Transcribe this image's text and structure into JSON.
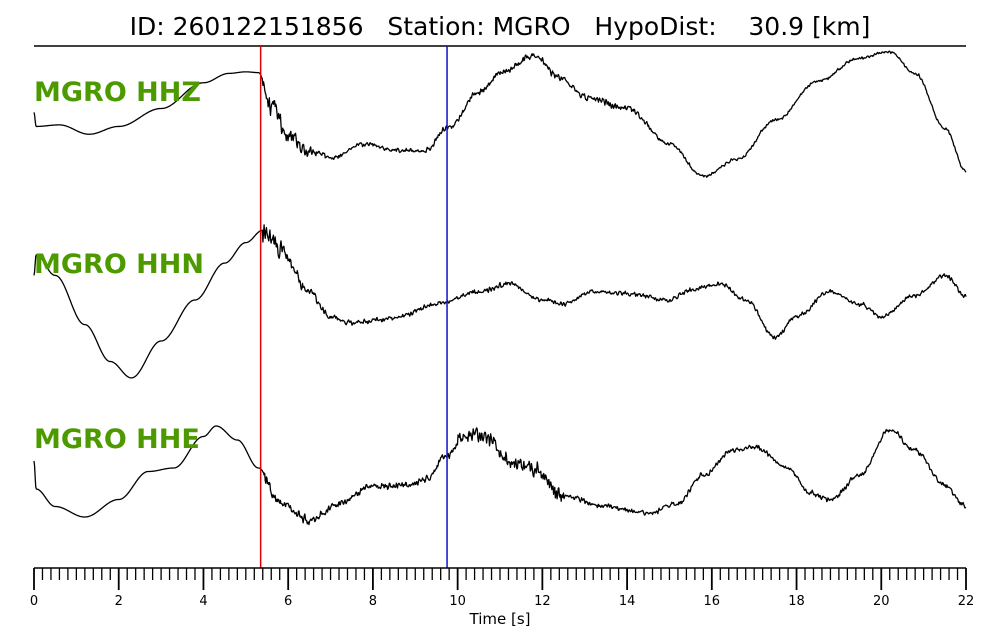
{
  "title": "ID: 260122151856   Station: MGRO   HypoDist:    30.9 [km]",
  "colors": {
    "label": "#4c9a00",
    "p_pick": "#e00000",
    "s_pick": "#1010cc",
    "trace": "#000000"
  },
  "chart_data": {
    "type": "line",
    "title": "ID: 260122151856   Station: MGRO   HypoDist:    30.9 [km]",
    "xlabel": "Time [s]",
    "ylabel": "",
    "xlim": [
      0,
      22
    ],
    "x_major_ticks": [
      0,
      2,
      4,
      6,
      8,
      10,
      12,
      14,
      16,
      18,
      20,
      22
    ],
    "x_tick_labels": [
      "0",
      "2",
      "4",
      "6",
      "8",
      "10",
      "12",
      "14",
      "16",
      "18",
      "20",
      "22"
    ],
    "x_minor_step": 0.2,
    "grid": false,
    "legend": "none",
    "picks": [
      {
        "color": "red",
        "time": 5.35
      },
      {
        "color": "blue",
        "time": 9.75
      }
    ],
    "series": [
      {
        "name": "MGRO HHZ",
        "envelope": [
          [
            0.0,
            0.2
          ],
          [
            0.05,
            0.02
          ],
          [
            0.6,
            0.04
          ],
          [
            1.3,
            -0.08
          ],
          [
            2.0,
            0.02
          ],
          [
            3.0,
            0.25
          ],
          [
            4.0,
            0.58
          ],
          [
            4.6,
            0.7
          ],
          [
            5.0,
            0.72
          ],
          [
            5.3,
            0.71
          ],
          [
            5.6,
            0.3
          ],
          [
            6.0,
            -0.1
          ],
          [
            6.5,
            -0.3
          ],
          [
            7.0,
            -0.38
          ],
          [
            7.8,
            -0.2
          ],
          [
            8.5,
            -0.28
          ],
          [
            9.2,
            -0.3
          ],
          [
            9.8,
            0.02
          ],
          [
            10.5,
            0.45
          ],
          [
            11.0,
            0.7
          ],
          [
            11.8,
            0.93
          ],
          [
            12.4,
            0.65
          ],
          [
            13.0,
            0.4
          ],
          [
            14.0,
            0.25
          ],
          [
            15.0,
            -0.2
          ],
          [
            15.8,
            -0.62
          ],
          [
            16.6,
            -0.4
          ],
          [
            17.5,
            0.1
          ],
          [
            18.5,
            0.6
          ],
          [
            19.5,
            0.9
          ],
          [
            20.2,
            0.98
          ],
          [
            20.8,
            0.7
          ],
          [
            21.5,
            0.0
          ],
          [
            22.0,
            -0.55
          ]
        ],
        "bursts": [
          {
            "t0": 5.4,
            "t1": 7.3,
            "amp": 0.42,
            "decay": 0.9
          },
          {
            "t0": 7.3,
            "t1": 10.2,
            "amp": 0.08,
            "decay": 0
          },
          {
            "t0": 10.2,
            "t1": 14.5,
            "amp": 0.1,
            "decay": 0
          },
          {
            "t0": 14.5,
            "t1": 22.0,
            "amp": 0.05,
            "decay": 0
          }
        ]
      },
      {
        "name": "MGRO HHN",
        "envelope": [
          [
            0.0,
            0.3
          ],
          [
            0.05,
            0.55
          ],
          [
            0.5,
            0.3
          ],
          [
            1.2,
            -0.3
          ],
          [
            1.8,
            -0.75
          ],
          [
            2.3,
            -0.95
          ],
          [
            3.0,
            -0.5
          ],
          [
            3.8,
            0.0
          ],
          [
            4.5,
            0.45
          ],
          [
            5.0,
            0.7
          ],
          [
            5.4,
            0.85
          ],
          [
            5.8,
            0.6
          ],
          [
            6.5,
            0.1
          ],
          [
            7.0,
            -0.2
          ],
          [
            7.5,
            -0.28
          ],
          [
            8.5,
            -0.22
          ],
          [
            9.5,
            -0.05
          ],
          [
            10.5,
            0.1
          ],
          [
            11.2,
            0.2
          ],
          [
            12.0,
            0.0
          ],
          [
            12.5,
            -0.05
          ],
          [
            13.2,
            0.1
          ],
          [
            14.0,
            0.08
          ],
          [
            15.0,
            0.0
          ],
          [
            15.5,
            0.12
          ],
          [
            16.2,
            0.2
          ],
          [
            16.8,
            0.0
          ],
          [
            17.5,
            -0.45
          ],
          [
            18.0,
            -0.2
          ],
          [
            18.8,
            0.1
          ],
          [
            19.5,
            -0.05
          ],
          [
            20.0,
            -0.2
          ],
          [
            20.8,
            0.05
          ],
          [
            21.5,
            0.3
          ],
          [
            22.0,
            0.05
          ]
        ],
        "bursts": [
          {
            "t0": 5.4,
            "t1": 7.0,
            "amp": 0.35,
            "decay": 0.7
          },
          {
            "t0": 7.0,
            "t1": 22.0,
            "amp": 0.07,
            "decay": 0
          }
        ]
      },
      {
        "name": "MGRO HHE",
        "envelope": [
          [
            0.0,
            0.1
          ],
          [
            0.05,
            -0.3
          ],
          [
            0.5,
            -0.55
          ],
          [
            1.2,
            -0.7
          ],
          [
            2.0,
            -0.45
          ],
          [
            2.7,
            -0.05
          ],
          [
            3.3,
            0.0
          ],
          [
            4.0,
            0.45
          ],
          [
            4.3,
            0.6
          ],
          [
            4.8,
            0.4
          ],
          [
            5.3,
            0.0
          ],
          [
            5.8,
            -0.5
          ],
          [
            6.5,
            -0.75
          ],
          [
            7.2,
            -0.5
          ],
          [
            8.0,
            -0.25
          ],
          [
            8.8,
            -0.25
          ],
          [
            9.3,
            -0.15
          ],
          [
            9.7,
            0.15
          ],
          [
            10.2,
            0.45
          ],
          [
            10.8,
            0.4
          ],
          [
            11.2,
            0.1
          ],
          [
            11.8,
            0.0
          ],
          [
            12.5,
            -0.4
          ],
          [
            13.5,
            -0.55
          ],
          [
            14.5,
            -0.65
          ],
          [
            15.2,
            -0.5
          ],
          [
            15.8,
            -0.1
          ],
          [
            16.5,
            0.25
          ],
          [
            17.0,
            0.3
          ],
          [
            17.8,
            0.0
          ],
          [
            18.3,
            -0.35
          ],
          [
            18.8,
            -0.45
          ],
          [
            19.5,
            -0.1
          ],
          [
            20.2,
            0.55
          ],
          [
            20.8,
            0.25
          ],
          [
            21.5,
            -0.25
          ],
          [
            22.0,
            -0.55
          ]
        ],
        "bursts": [
          {
            "t0": 5.4,
            "t1": 7.0,
            "amp": 0.28,
            "decay": 0.3
          },
          {
            "t0": 7.0,
            "t1": 10.0,
            "amp": 0.12,
            "decay": 0
          },
          {
            "t0": 10.0,
            "t1": 12.5,
            "amp": 0.3,
            "decay": 0
          },
          {
            "t0": 12.5,
            "t1": 22.0,
            "amp": 0.09,
            "decay": 0
          }
        ]
      }
    ]
  }
}
